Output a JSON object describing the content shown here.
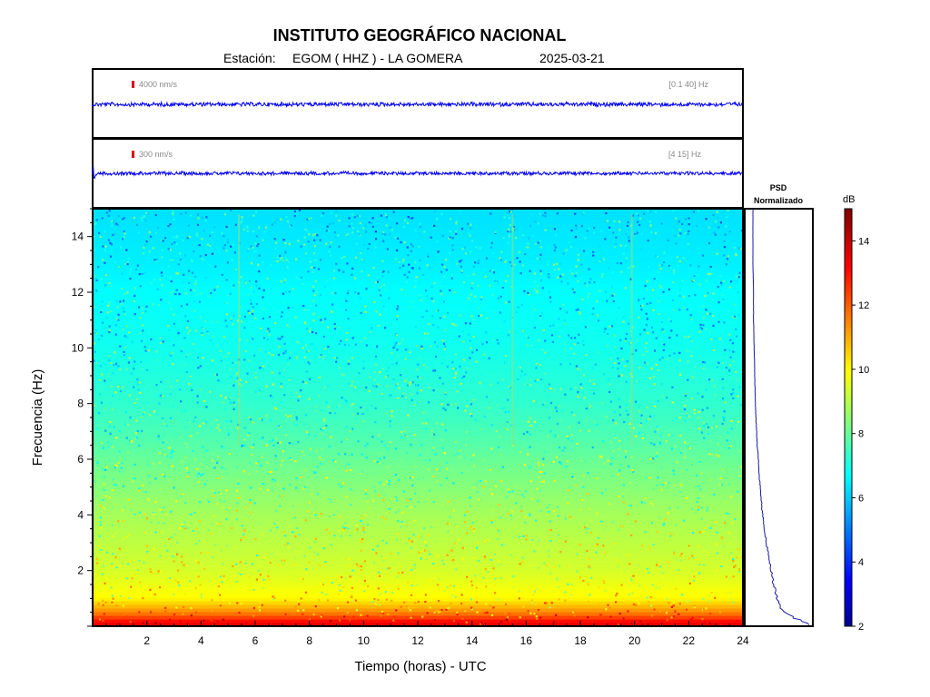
{
  "header": {
    "title": "INSTITUTO GEOGRÁFICO NACIONAL",
    "station_label": "Estación:",
    "station": "EGOM ( HHZ ) - LA GOMERA",
    "date": "2025-03-21"
  },
  "colors": {
    "trace": "#0000ee",
    "scale_marker": "#dd0000",
    "psd_line": "#1a1a9e"
  },
  "chart_data": [
    {
      "type": "line",
      "name": "waveform-broadband",
      "scale_label": "4000 nm/s",
      "band_label": "[0.1 40] Hz",
      "x": [
        0,
        24
      ],
      "xlim": [
        0,
        24
      ],
      "amplitude_note": "continuous low-amplitude trace, no events"
    },
    {
      "type": "line",
      "name": "waveform-filtered",
      "scale_label": "300 nm/s",
      "band_label": "[4 15] Hz",
      "x": [
        0,
        24
      ],
      "xlim": [
        0,
        24
      ],
      "amplitude_note": "continuous low-amplitude trace, small spike at start"
    },
    {
      "type": "heatmap",
      "name": "spectrogram",
      "xlabel": "Tiempo (horas) - UTC",
      "ylabel": "Frecuencia  (Hz)",
      "xlim": [
        0,
        24
      ],
      "ylim": [
        0,
        15
      ],
      "xticks": [
        2,
        4,
        6,
        8,
        10,
        12,
        14,
        16,
        18,
        20,
        22,
        24
      ],
      "yticks": [
        2,
        4,
        6,
        8,
        10,
        12,
        14
      ],
      "freq_profile": {
        "freq_hz": [
          0.1,
          0.5,
          1,
          2,
          3,
          4,
          5,
          6,
          7,
          8,
          9,
          10,
          11,
          12,
          13,
          14,
          15
        ],
        "db": [
          13.5,
          11.5,
          10.0,
          9.4,
          9.1,
          8.8,
          8.4,
          8.0,
          7.6,
          7.3,
          7.1,
          6.9,
          6.8,
          6.7,
          6.5,
          6.4,
          6.3
        ]
      },
      "vertical_lines_hours": [
        5.4,
        15.5,
        19.9
      ]
    },
    {
      "type": "line",
      "name": "psd",
      "title_line1": "PSD",
      "title_line2": "Normalizado",
      "freq_hz": [
        0.1,
        0.3,
        0.6,
        1,
        1.5,
        2,
        2.5,
        3,
        3.5,
        4,
        4.5,
        5,
        5.5,
        6,
        6.5,
        7,
        7.5,
        8,
        9,
        10,
        11,
        12,
        13,
        14,
        15
      ],
      "value": [
        0.95,
        0.7,
        0.5,
        0.43,
        0.37,
        0.33,
        0.29,
        0.25,
        0.22,
        0.19,
        0.17,
        0.15,
        0.13,
        0.12,
        0.1,
        0.09,
        0.08,
        0.07,
        0.06,
        0.05,
        0.04,
        0.04,
        0.03,
        0.03,
        0.03
      ],
      "xlim": [
        0,
        1
      ],
      "ylim": [
        0,
        15
      ]
    },
    {
      "type": "heatmap",
      "name": "colorbar",
      "label": "dB",
      "range": [
        2,
        15
      ],
      "ticks": [
        2,
        4,
        6,
        8,
        10,
        12,
        14
      ]
    }
  ]
}
